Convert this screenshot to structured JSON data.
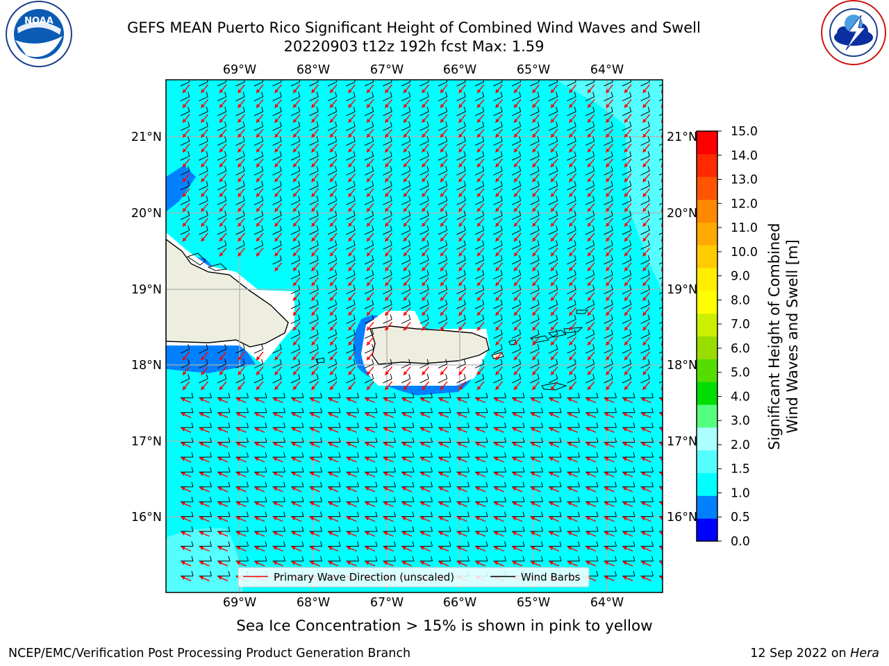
{
  "header": {
    "title_line1": "GEFS MEAN Puerto Rico Significant Height of Combined Wind Waves and Swell",
    "title_line2": "20220903 t12z 192h fcst   Max: 1.59"
  },
  "logos": {
    "left": {
      "icon": "noaa-logo",
      "text": "NOAA",
      "ring_text": "NATIONAL OCEANIC AND ATMOSPHERIC ADMINISTRATION · U.S. DEPARTMENT OF COMMERCE"
    },
    "right": {
      "icon": "nws-logo",
      "ring_text": "NATIONAL WEATHER SERVICE"
    }
  },
  "map": {
    "lon_labels": [
      "69°W",
      "68°W",
      "67°W",
      "66°W",
      "65°W",
      "64°W"
    ],
    "lat_labels": [
      "21°N",
      "20°N",
      "19°N",
      "18°N",
      "17°N",
      "16°N"
    ],
    "legend": {
      "wave_direction": "Primary Wave Direction (unscaled)",
      "wind_barbs": "Wind Barbs"
    },
    "colors": {
      "ocean": "#00ffff",
      "ocean_light": "#55ffff",
      "ocean_deep": "#0080ff",
      "land": "#eeeee0",
      "arrow": "#ff0000"
    }
  },
  "colorbar": {
    "title_line1": "Significant Height of Combined",
    "title_line2": "Wind Waves and Swell [m]",
    "ticks": [
      "15.0",
      "14.0",
      "13.0",
      "12.0",
      "11.0",
      "10.0",
      "9.0",
      "8.0",
      "7.0",
      "6.0",
      "5.0",
      "4.0",
      "3.0",
      "2.0",
      "1.5",
      "1.0",
      "0.5",
      "0.0"
    ],
    "colors": [
      "#0000ff",
      "#0080ff",
      "#00ffff",
      "#55ffff",
      "#aaffff",
      "#55ff80",
      "#00dd00",
      "#55dd00",
      "#99dd00",
      "#ccee00",
      "#ffff00",
      "#ffee00",
      "#ffcc00",
      "#ffaa00",
      "#ff8800",
      "#ff5500",
      "#ff2a00",
      "#ff0000"
    ]
  },
  "note": "Sea Ice Concentration > 15% is shown in pink to yellow",
  "footer": {
    "left": "NCEP/EMC/Verification Post Processing Product Generation Branch",
    "right_prefix": "12 Sep 2022 on ",
    "right_host": "Hera"
  }
}
